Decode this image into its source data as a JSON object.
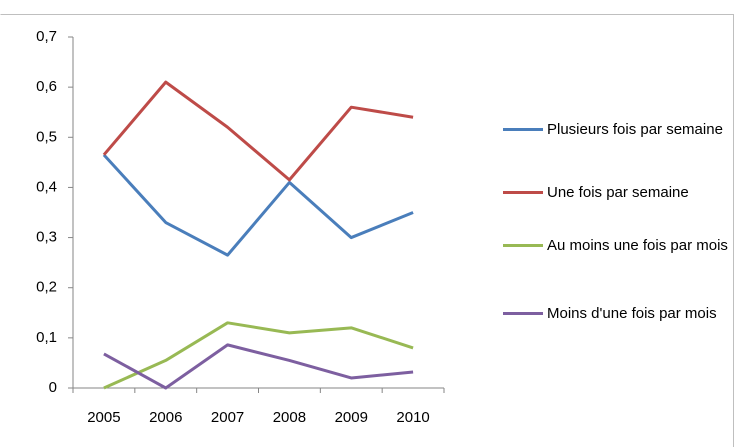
{
  "chart_data": {
    "type": "line",
    "categories": [
      "2005",
      "2006",
      "2007",
      "2008",
      "2009",
      "2010"
    ],
    "series": [
      {
        "name": "Plusieurs fois par semaine",
        "color": "#4a7ebb",
        "values": [
          0.465,
          0.33,
          0.265,
          0.41,
          0.3,
          0.35
        ]
      },
      {
        "name": "Une fois par semaine",
        "color": "#be4b48",
        "values": [
          0.465,
          0.61,
          0.52,
          0.415,
          0.56,
          0.54
        ]
      },
      {
        "name": "Au moins une fois par mois",
        "color": "#98b954",
        "values": [
          0,
          0.055,
          0.13,
          0.11,
          0.12,
          0.08
        ]
      },
      {
        "name": "Moins d'une fois par mois",
        "color": "#7d5fa0",
        "values": [
          0.068,
          0,
          0.086,
          0.055,
          0.02,
          0.032
        ]
      }
    ],
    "ylim": [
      0,
      0.7
    ],
    "yticks": [
      0,
      {
        "value": 0.1,
        "label": "0,1"
      },
      {
        "value": 0.2,
        "label": "0,2"
      },
      {
        "value": 0.3,
        "label": "0,3"
      },
      {
        "value": 0.4,
        "label": "0,4"
      },
      {
        "value": 0.5,
        "label": "0,5"
      },
      {
        "value": 0.6,
        "label": "0,6"
      },
      {
        "value": 0.7,
        "label": "0,7"
      }
    ],
    "legend": "right",
    "grid": false
  }
}
